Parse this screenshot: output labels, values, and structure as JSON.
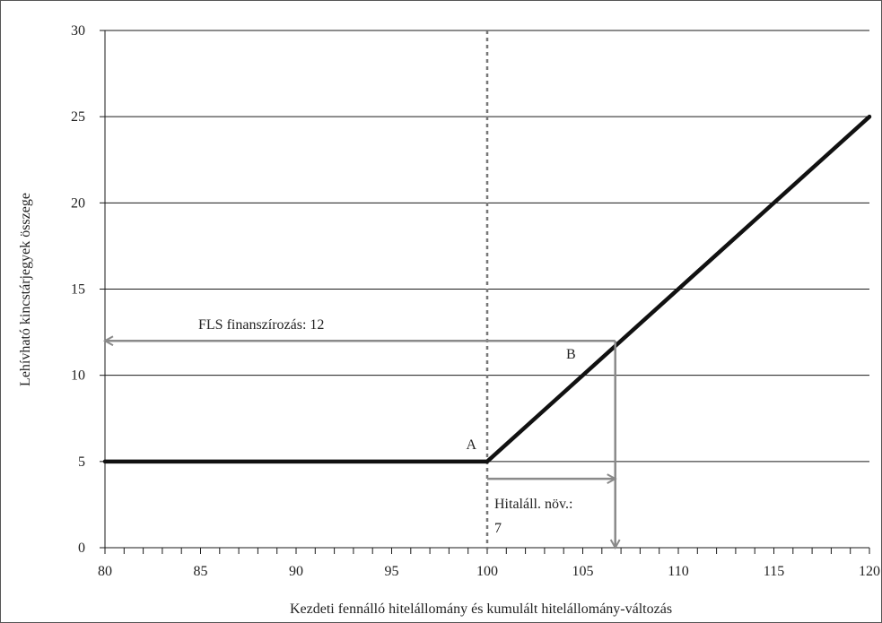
{
  "chart_data": {
    "type": "line",
    "xlabel": "Kezdeti fennálló hitelállomány és kumulált hitelállomány-változás",
    "ylabel": "Lehívható kincstárjegyek összege",
    "xlim": [
      80,
      120
    ],
    "ylim": [
      0,
      30
    ],
    "x_ticks": [
      80,
      85,
      90,
      95,
      100,
      105,
      110,
      115,
      120
    ],
    "y_ticks": [
      0,
      5,
      10,
      15,
      20,
      25,
      30
    ],
    "grid": "horizontal",
    "series": [
      {
        "x": [
          80,
          100,
          120
        ],
        "y": [
          5,
          5,
          25
        ]
      }
    ],
    "reference_line": {
      "x": 100,
      "style": "dotted"
    },
    "points": [
      {
        "label": "A",
        "x": 100,
        "y": 5
      },
      {
        "label": "B",
        "x": 106.7,
        "y": 12
      }
    ],
    "annotations": {
      "fls": "FLS finanszírozás: 12",
      "hitel_line1": "Hitaláll. növ.:",
      "hitel_line2": "7"
    },
    "arrows": [
      {
        "from": [
          106.7,
          12
        ],
        "to": [
          80,
          12
        ]
      },
      {
        "from": [
          106.7,
          12
        ],
        "to": [
          106.7,
          0
        ]
      },
      {
        "from": [
          100,
          4
        ],
        "to": [
          106.7,
          4
        ]
      }
    ]
  }
}
